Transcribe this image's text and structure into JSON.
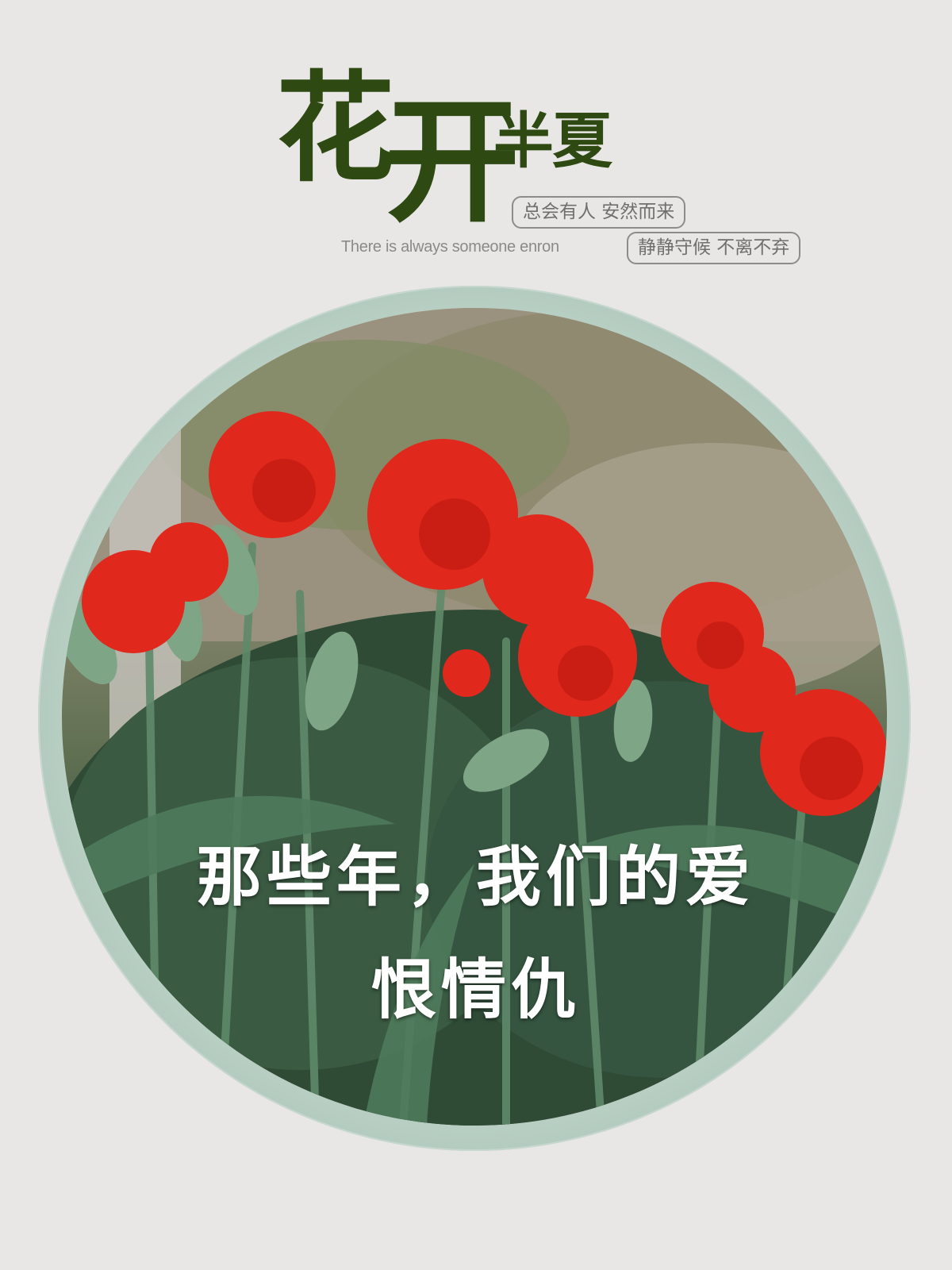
{
  "title": {
    "char1": "花",
    "char2": "开",
    "char3": "半",
    "char4": "夏"
  },
  "tags": {
    "line1": "总会有人 安然而来",
    "line2": "静静守候 不离不弃"
  },
  "subtitle": "There is always someone enron",
  "caption": {
    "line1": "那些年，我们的爱",
    "line2": "恨情仇"
  },
  "colors": {
    "title_green": "#2e4a12",
    "background": "#e9e7e6",
    "frame": "#bfd3c8",
    "flower_red": "#e0281c"
  }
}
